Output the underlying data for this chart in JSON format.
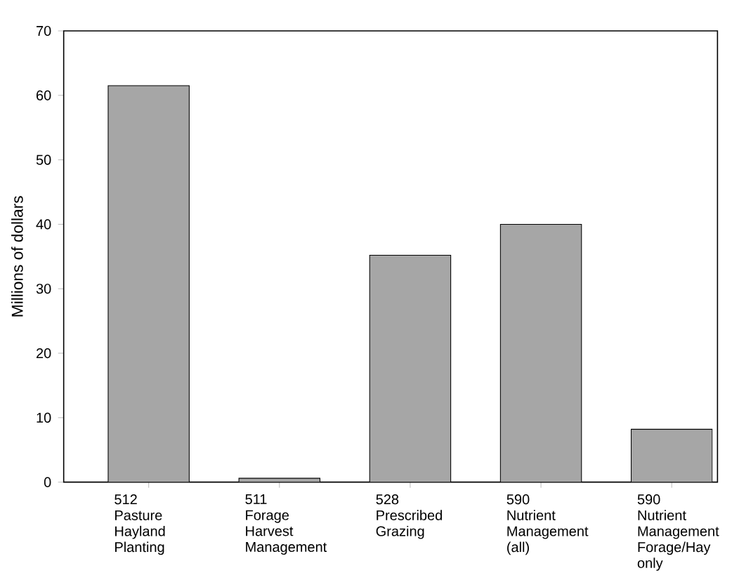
{
  "chart_data": {
    "type": "bar",
    "ylabel": "Millions of dollars",
    "categories": [
      "512 Pasture Hayland Planting",
      "511 Forage Harvest Management",
      "528 Prescribed Grazing",
      "590 Nutrient Management (all)",
      "590 Nutrient Management Forage/Hay only"
    ],
    "values": [
      61.5,
      0.6,
      35.2,
      40,
      8.2
    ],
    "color": "#a6a6a6",
    "ylim": [
      0,
      70
    ],
    "yticks": [
      0,
      10,
      20,
      30,
      40,
      50,
      60,
      70
    ],
    "grid": false
  }
}
